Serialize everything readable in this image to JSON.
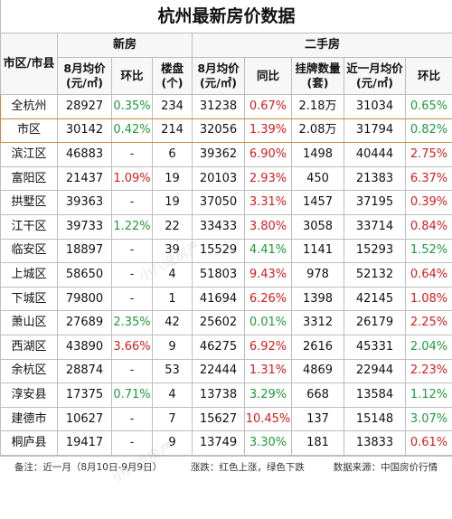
{
  "title": "杭州最新房价数据",
  "headers": {
    "region": "市区/市县",
    "new_house": "新房",
    "second_hand": "二手房",
    "new_avg_price": "8月均价(元/㎡)",
    "new_mom": "环比",
    "new_projects": "楼盘(个)",
    "sh_avg_price": "8月均价(元/㎡)",
    "sh_yoy": "同比",
    "sh_listings": "挂牌数量(套)",
    "sh_recent_avg": "近一月均价(元/㎡)",
    "sh_mom": "环比"
  },
  "rows": [
    {
      "region": "全杭州",
      "new_price": "28927",
      "new_mom": "0.35%",
      "new_mom_dir": "down",
      "projects": "234",
      "sh_price": "31238",
      "sh_yoy": "0.67%",
      "sh_yoy_dir": "up",
      "listings": "2.18万",
      "recent_avg": "31034",
      "sh_mom": "0.65%",
      "sh_mom_dir": "down"
    },
    {
      "region": "市区",
      "new_price": "30142",
      "new_mom": "0.42%",
      "new_mom_dir": "down",
      "projects": "214",
      "sh_price": "32056",
      "sh_yoy": "1.39%",
      "sh_yoy_dir": "up",
      "listings": "2.08万",
      "recent_avg": "31794",
      "sh_mom": "0.82%",
      "sh_mom_dir": "down"
    },
    {
      "region": "滨江区",
      "new_price": "46883",
      "new_mom": "-",
      "new_mom_dir": "neutral",
      "projects": "6",
      "sh_price": "39362",
      "sh_yoy": "6.90%",
      "sh_yoy_dir": "up",
      "listings": "1498",
      "recent_avg": "40444",
      "sh_mom": "2.75%",
      "sh_mom_dir": "up"
    },
    {
      "region": "富阳区",
      "new_price": "21437",
      "new_mom": "1.09%",
      "new_mom_dir": "up",
      "projects": "19",
      "sh_price": "20103",
      "sh_yoy": "2.93%",
      "sh_yoy_dir": "up",
      "listings": "450",
      "recent_avg": "21383",
      "sh_mom": "6.37%",
      "sh_mom_dir": "up"
    },
    {
      "region": "拱墅区",
      "new_price": "39363",
      "new_mom": "-",
      "new_mom_dir": "neutral",
      "projects": "19",
      "sh_price": "37050",
      "sh_yoy": "3.31%",
      "sh_yoy_dir": "up",
      "listings": "1457",
      "recent_avg": "37195",
      "sh_mom": "0.39%",
      "sh_mom_dir": "up"
    },
    {
      "region": "江干区",
      "new_price": "39733",
      "new_mom": "1.22%",
      "new_mom_dir": "down",
      "projects": "22",
      "sh_price": "33433",
      "sh_yoy": "3.80%",
      "sh_yoy_dir": "up",
      "listings": "3058",
      "recent_avg": "33714",
      "sh_mom": "0.84%",
      "sh_mom_dir": "up"
    },
    {
      "region": "临安区",
      "new_price": "18897",
      "new_mom": "-",
      "new_mom_dir": "neutral",
      "projects": "39",
      "sh_price": "15529",
      "sh_yoy": "4.41%",
      "sh_yoy_dir": "down",
      "listings": "1141",
      "recent_avg": "15293",
      "sh_mom": "1.52%",
      "sh_mom_dir": "down"
    },
    {
      "region": "上城区",
      "new_price": "58650",
      "new_mom": "-",
      "new_mom_dir": "neutral",
      "projects": "4",
      "sh_price": "51803",
      "sh_yoy": "9.43%",
      "sh_yoy_dir": "up",
      "listings": "978",
      "recent_avg": "52132",
      "sh_mom": "0.64%",
      "sh_mom_dir": "up"
    },
    {
      "region": "下城区",
      "new_price": "79800",
      "new_mom": "-",
      "new_mom_dir": "neutral",
      "projects": "1",
      "sh_price": "41694",
      "sh_yoy": "6.26%",
      "sh_yoy_dir": "up",
      "listings": "1398",
      "recent_avg": "42145",
      "sh_mom": "1.08%",
      "sh_mom_dir": "up"
    },
    {
      "region": "萧山区",
      "new_price": "27689",
      "new_mom": "2.35%",
      "new_mom_dir": "down",
      "projects": "42",
      "sh_price": "25602",
      "sh_yoy": "0.01%",
      "sh_yoy_dir": "down",
      "listings": "3312",
      "recent_avg": "26179",
      "sh_mom": "2.25%",
      "sh_mom_dir": "up"
    },
    {
      "region": "西湖区",
      "new_price": "43890",
      "new_mom": "3.66%",
      "new_mom_dir": "up",
      "projects": "9",
      "sh_price": "46275",
      "sh_yoy": "6.92%",
      "sh_yoy_dir": "up",
      "listings": "2616",
      "recent_avg": "45331",
      "sh_mom": "2.04%",
      "sh_mom_dir": "down"
    },
    {
      "region": "余杭区",
      "new_price": "28874",
      "new_mom": "-",
      "new_mom_dir": "neutral",
      "projects": "53",
      "sh_price": "22444",
      "sh_yoy": "1.31%",
      "sh_yoy_dir": "up",
      "listings": "4869",
      "recent_avg": "22944",
      "sh_mom": "2.23%",
      "sh_mom_dir": "up"
    },
    {
      "region": "淳安县",
      "new_price": "17375",
      "new_mom": "0.71%",
      "new_mom_dir": "down",
      "projects": "4",
      "sh_price": "13738",
      "sh_yoy": "3.29%",
      "sh_yoy_dir": "down",
      "listings": "668",
      "recent_avg": "13584",
      "sh_mom": "1.12%",
      "sh_mom_dir": "down"
    },
    {
      "region": "建德市",
      "new_price": "10627",
      "new_mom": "-",
      "new_mom_dir": "neutral",
      "projects": "7",
      "sh_price": "15627",
      "sh_yoy": "10.45%",
      "sh_yoy_dir": "up",
      "listings": "137",
      "recent_avg": "15148",
      "sh_mom": "3.07%",
      "sh_mom_dir": "down"
    },
    {
      "region": "桐庐县",
      "new_price": "19417",
      "new_mom": "-",
      "new_mom_dir": "neutral",
      "projects": "9",
      "sh_price": "13749",
      "sh_yoy": "3.30%",
      "sh_yoy_dir": "down",
      "listings": "181",
      "recent_avg": "13833",
      "sh_mom": "0.61%",
      "sh_mom_dir": "up"
    }
  ],
  "footer": {
    "note": "备注：近一月（8月10日-9月9日）",
    "legend": "涨跌：红色上涨，绿色下跌",
    "source": "数据来源：中国房价行情"
  },
  "watermark": "小八说房产",
  "colors": {
    "up": "#d21e1e",
    "down": "#1f9a3c",
    "highlight_border": "#c98a3b"
  }
}
